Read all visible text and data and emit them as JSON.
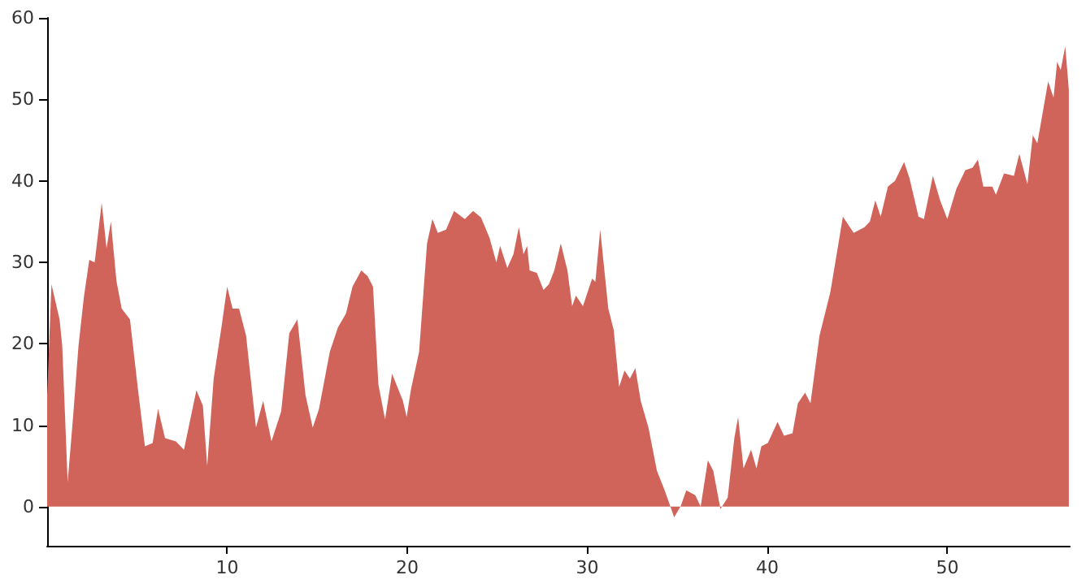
{
  "chart_data": {
    "type": "area",
    "x": [
      0,
      0.24,
      0.3,
      0.69,
      0.84,
      1.14,
      1.44,
      1.74,
      2.04,
      2.34,
      2.64,
      3.03,
      3.3,
      3.54,
      3.85,
      4.14,
      4.6,
      5.05,
      5.43,
      5.86,
      6.16,
      6.55,
      7.15,
      7.6,
      8.29,
      8.65,
      8.89,
      9.25,
      9.7,
      10,
      10.3,
      10.66,
      11.05,
      11.6,
      12,
      12.46,
      13,
      13.45,
      13.9,
      14.35,
      14.75,
      15.1,
      15.7,
      16.15,
      16.6,
      16.96,
      17.45,
      17.8,
      18.1,
      18.4,
      18.77,
      19.16,
      19.76,
      19.97,
      20.2,
      20.66,
      21.1,
      21.4,
      21.7,
      22.16,
      22.6,
      23.2,
      23.66,
      24.1,
      24.57,
      24.95,
      25.16,
      25.56,
      25.9,
      26.2,
      26.46,
      26.66,
      26.8,
      27.2,
      27.57,
      27.87,
      28.17,
      28.53,
      28.9,
      29.16,
      29.37,
      29.76,
      30.27,
      30.45,
      30.72,
      31.17,
      31.47,
      31.77,
      32.07,
      32.37,
      32.67,
      32.97,
      33.4,
      33.87,
      34.3,
      34.83,
      35.2,
      35.5,
      36,
      36.3,
      36.7,
      37,
      37.4,
      37.8,
      38.17,
      38.38,
      38.68,
      39.1,
      39.4,
      39.67,
      40.03,
      40.57,
      40.93,
      41.4,
      41.7,
      42.1,
      42.4,
      42.9,
      43.5,
      43.9,
      44.2,
      44.8,
      45.4,
      45.7,
      46,
      46.3,
      46.7,
      47.1,
      47.6,
      47.9,
      48.4,
      48.7,
      49.2,
      49.6,
      50,
      50.5,
      51,
      51.4,
      51.7,
      52,
      52.5,
      52.7,
      53.15,
      53.7,
      54,
      54.45,
      54.75,
      55,
      55.6,
      55.9,
      56.1,
      56.3,
      56.55,
      56.75
    ],
    "series": [
      {
        "color": "#d0645a",
        "values": [
          13.7,
          27.3,
          27.3,
          23,
          19.7,
          3,
          11,
          19.7,
          25.7,
          30.3,
          30,
          37.3,
          31.7,
          35,
          27.7,
          24.3,
          23,
          14.3,
          7.4,
          7.8,
          12,
          8.4,
          8,
          7,
          14.3,
          12.4,
          5,
          15.7,
          22.3,
          27,
          24.3,
          24.3,
          21,
          9.7,
          13,
          8,
          11.7,
          21.3,
          23,
          13.7,
          9.7,
          12,
          19,
          22,
          23.7,
          27,
          29,
          28.3,
          27,
          15,
          10.7,
          16.3,
          13,
          11,
          14.3,
          19,
          32.3,
          35.3,
          33.6,
          34,
          36.3,
          35.3,
          36.3,
          35.5,
          33,
          30,
          32,
          29.3,
          31,
          34.3,
          31,
          32,
          29,
          28.7,
          26.6,
          27.3,
          29,
          32.3,
          29,
          24.6,
          25.9,
          24.6,
          28,
          27.6,
          34,
          24.3,
          21.7,
          14.7,
          16.7,
          15.7,
          17,
          13,
          9.7,
          4.4,
          2,
          -1.3,
          0.1,
          2,
          1.4,
          0,
          5.7,
          4.4,
          -0.3,
          1.1,
          8.4,
          11,
          4.7,
          7,
          4.7,
          7.4,
          7.8,
          10.4,
          8.7,
          9,
          12.7,
          14,
          12.7,
          21,
          26.3,
          31.6,
          35.6,
          33.6,
          34.3,
          35,
          37.6,
          35.6,
          39.3,
          40,
          42.3,
          40.3,
          35.6,
          35.3,
          40.6,
          37.6,
          35.3,
          39,
          41.3,
          41.6,
          42.6,
          39.3,
          39.3,
          38.3,
          40.9,
          40.6,
          43.3,
          39.6,
          45.6,
          44.6,
          52.2,
          50.2,
          54.6,
          53.6,
          56.5,
          51.2
        ]
      }
    ],
    "xlim": [
      0,
      56.8
    ],
    "xticks": [
      10,
      20,
      30,
      40,
      50
    ],
    "ylim": [
      -4.8,
      60
    ],
    "yticks": [
      0,
      10,
      20,
      30,
      40,
      50,
      60
    ],
    "grid": false
  }
}
